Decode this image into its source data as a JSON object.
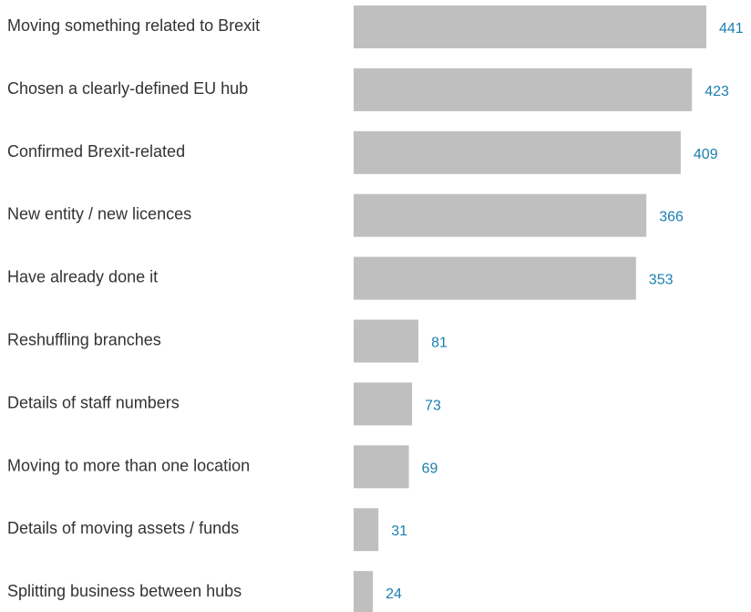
{
  "chart_data": {
    "type": "bar",
    "orientation": "horizontal",
    "categories": [
      "Moving something related to Brexit",
      "Chosen a clearly-defined EU hub",
      "Confirmed Brexit-related",
      "New entity / new licences",
      "Have already done it",
      "Reshuffling branches",
      "Details of staff numbers",
      "Moving to more than one location",
      "Details of moving assets / funds",
      "Splitting business between hubs"
    ],
    "values": [
      441,
      423,
      409,
      366,
      353,
      81,
      73,
      69,
      31,
      24
    ],
    "title": "",
    "xlabel": "",
    "ylabel": "",
    "xlim": [
      0,
      441
    ],
    "grid": false,
    "legend": "none",
    "colors": {
      "bar": "#bfbfbf",
      "value_label": "#1a7fb0",
      "category_label": "#333333"
    }
  }
}
